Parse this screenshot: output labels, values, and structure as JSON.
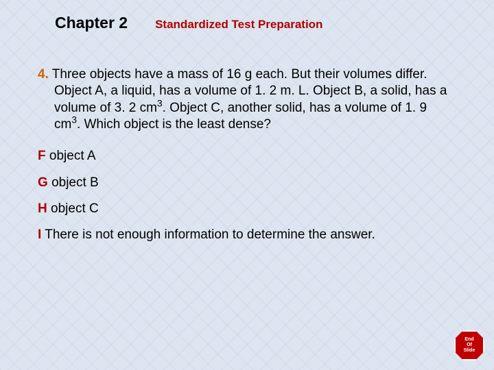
{
  "header": {
    "chapter": "Chapter 2",
    "subtitle": "Standardized Test Preparation"
  },
  "question": {
    "number": "4.",
    "text_part1": "Three objects have a mass of 16 g each. But their volumes differ. Object A, a liquid, has a volume of 1. 2 m. L. Object B, a solid, has a volume of 3. 2 cm",
    "sup1": "3",
    "text_part2": ". Object C, another solid, has a volume of 1. 9 cm",
    "sup2": "3",
    "text_part3": ". Which object is the least dense?"
  },
  "options": {
    "f": {
      "letter": "F",
      "text": "object A"
    },
    "g": {
      "letter": "G",
      "text": "object B"
    },
    "h": {
      "letter": "H",
      "text": "object C"
    },
    "i": {
      "letter": "I",
      "text": "There is not enough information to determine the answer."
    }
  },
  "endSlide": {
    "line1": "End",
    "line2": "Of",
    "line3": "Slide"
  },
  "colors": {
    "question_num": "#d06000",
    "subtitle": "#b00000",
    "option_letter": "#b00000",
    "text": "#000000",
    "background": "#dde5f0",
    "stop_sign": "#c00000"
  },
  "typography": {
    "chapter_fontsize": 23,
    "subtitle_fontsize": 17,
    "body_fontsize": 19
  }
}
